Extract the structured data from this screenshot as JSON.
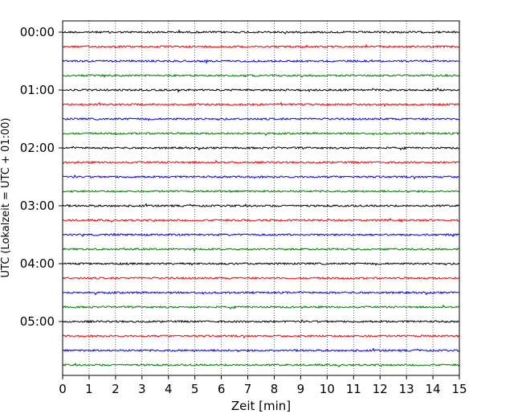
{
  "chart_data": {
    "type": "line",
    "subtype": "helicorder",
    "title": "",
    "xlabel": "Zeit  [min]",
    "ylabel": "UTC (Lokalzeit = UTC + 01:00)",
    "xlim": [
      0,
      15
    ],
    "x_ticks": [
      0,
      1,
      2,
      3,
      4,
      5,
      6,
      7,
      8,
      9,
      10,
      11,
      12,
      13,
      14,
      15
    ],
    "x_tick_labels": [
      "0",
      "1",
      "2",
      "3",
      "4",
      "5",
      "6",
      "7",
      "8",
      "9",
      "10",
      "11",
      "12",
      "13",
      "14",
      "15"
    ],
    "y_tick_labels": [
      "00:00",
      "01:00",
      "02:00",
      "03:00",
      "04:00",
      "05:00"
    ],
    "traces_per_hour": 4,
    "trace_count": 24,
    "trace_minutes": 15,
    "trace_colors": [
      "#000000",
      "#ff0000",
      "#0000ff",
      "#008000"
    ],
    "grid": "vertical dotted lines at each minute"
  }
}
